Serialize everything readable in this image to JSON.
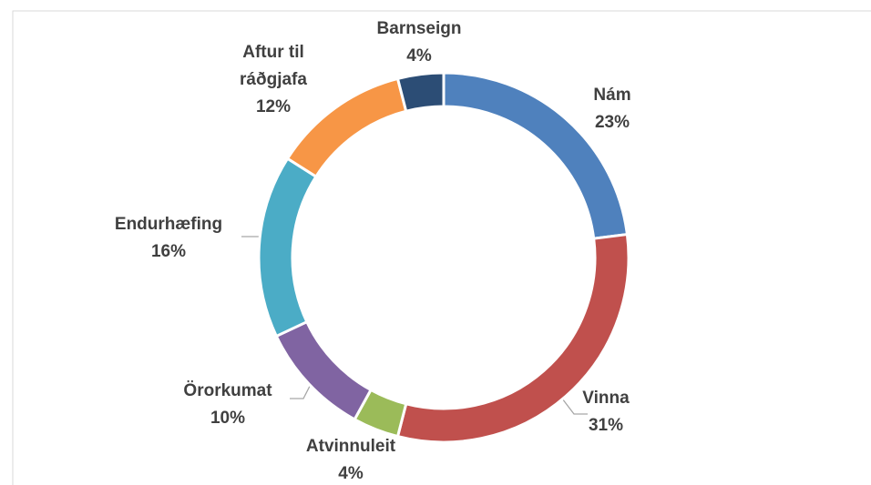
{
  "chart_data": {
    "type": "donut",
    "categories": [
      "Nám",
      "Vinna",
      "Atvinnuleit",
      "Örorkumat",
      "Endurhæfing",
      "Aftur til ráðgjafa",
      "Barnseign"
    ],
    "values": [
      23,
      31,
      4,
      10,
      16,
      12,
      4
    ],
    "value_labels": [
      "23%",
      "31%",
      "4%",
      "10%",
      "16%",
      "12%",
      "4%"
    ],
    "colors": [
      "#4f81bd",
      "#c0504d",
      "#9bbb59",
      "#8064a2",
      "#4bacc6",
      "#f79646",
      "#2c4d75"
    ]
  }
}
